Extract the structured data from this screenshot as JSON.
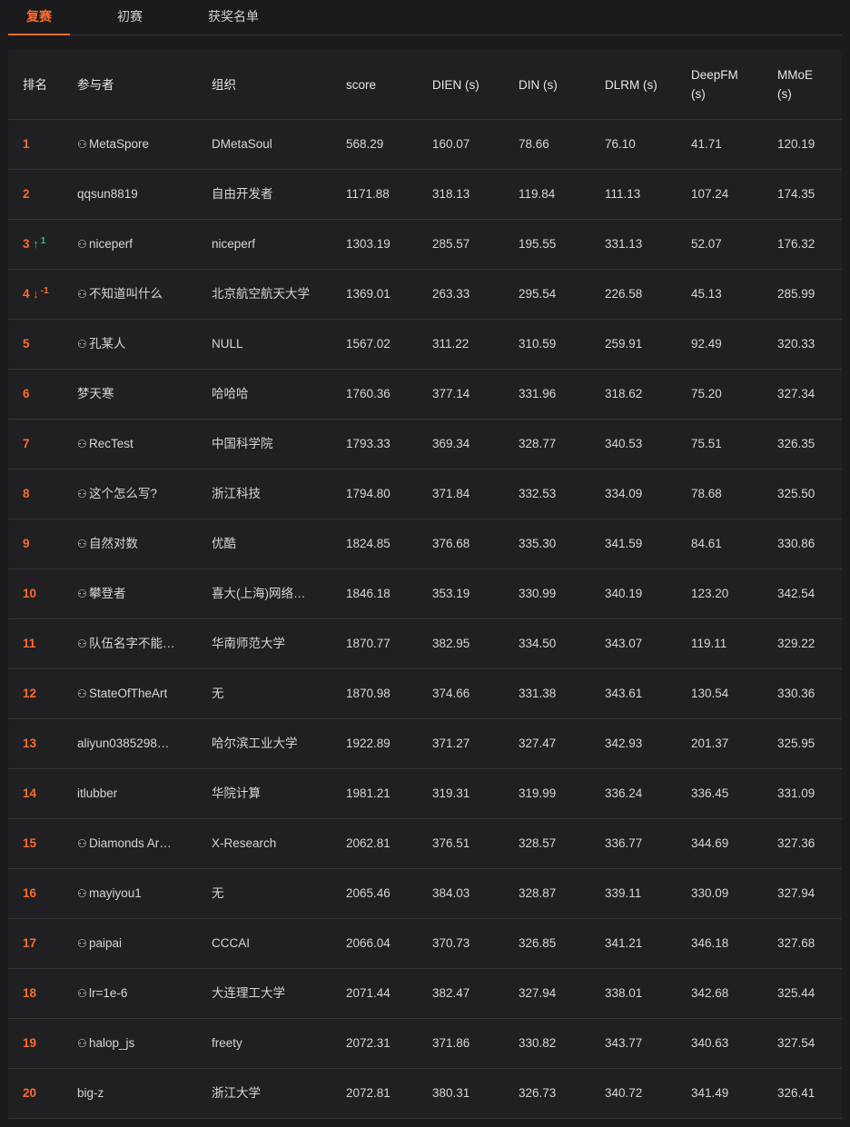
{
  "tabs": [
    "复赛",
    "初赛",
    "获奖名单"
  ],
  "headers": {
    "rank": "排名",
    "participant": "参与者",
    "org": "组织",
    "score": "score",
    "dien": "DIEN (s)",
    "din": "DIN (s)",
    "dlrm": "DLRM (s)",
    "deepfm": [
      "DeepFM",
      "(s)"
    ],
    "mmoe": [
      "MMoE",
      "(s)"
    ]
  },
  "rows": [
    {
      "rank": "1",
      "team": true,
      "name": "MetaSpore",
      "org": "DMetaSoul",
      "score": "568.29",
      "dien": "160.07",
      "din": "78.66",
      "dlrm": "76.10",
      "deepfm": "41.71",
      "mmoe": "120.19"
    },
    {
      "rank": "2",
      "team": false,
      "name": "qqsun8819",
      "org": "自由开发者",
      "score": "1171.88",
      "dien": "318.13",
      "din": "119.84",
      "dlrm": "111.13",
      "deepfm": "107.24",
      "mmoe": "174.35"
    },
    {
      "rank": "3",
      "change": "up",
      "delta": "1",
      "team": true,
      "name": "niceperf",
      "org": "niceperf",
      "score": "1303.19",
      "dien": "285.57",
      "din": "195.55",
      "dlrm": "331.13",
      "deepfm": "52.07",
      "mmoe": "176.32"
    },
    {
      "rank": "4",
      "change": "down",
      "delta": "-1",
      "team": true,
      "name": "不知道叫什么",
      "org": "北京航空航天大学",
      "score": "1369.01",
      "dien": "263.33",
      "din": "295.54",
      "dlrm": "226.58",
      "deepfm": "45.13",
      "mmoe": "285.99"
    },
    {
      "rank": "5",
      "team": true,
      "name": "孔某人",
      "org": "NULL",
      "score": "1567.02",
      "dien": "311.22",
      "din": "310.59",
      "dlrm": "259.91",
      "deepfm": "92.49",
      "mmoe": "320.33"
    },
    {
      "rank": "6",
      "team": false,
      "name": "梦天寒",
      "org": "哈哈哈",
      "score": "1760.36",
      "dien": "377.14",
      "din": "331.96",
      "dlrm": "318.62",
      "deepfm": "75.20",
      "mmoe": "327.34"
    },
    {
      "rank": "7",
      "team": true,
      "name": "RecTest",
      "org": "中国科学院",
      "score": "1793.33",
      "dien": "369.34",
      "din": "328.77",
      "dlrm": "340.53",
      "deepfm": "75.51",
      "mmoe": "326.35"
    },
    {
      "rank": "8",
      "team": true,
      "name": "这个怎么写?",
      "org": "浙江科技",
      "score": "1794.80",
      "dien": "371.84",
      "din": "332.53",
      "dlrm": "334.09",
      "deepfm": "78.68",
      "mmoe": "325.50"
    },
    {
      "rank": "9",
      "team": true,
      "name": "自然对数",
      "org": "优酷",
      "score": "1824.85",
      "dien": "376.68",
      "din": "335.30",
      "dlrm": "341.59",
      "deepfm": "84.61",
      "mmoe": "330.86"
    },
    {
      "rank": "10",
      "team": true,
      "name": "攀登者",
      "org": "喜大(上海)网络…",
      "score": "1846.18",
      "dien": "353.19",
      "din": "330.99",
      "dlrm": "340.19",
      "deepfm": "123.20",
      "mmoe": "342.54"
    },
    {
      "rank": "11",
      "team": true,
      "name": "队伍名字不能…",
      "org": "华南师范大学",
      "score": "1870.77",
      "dien": "382.95",
      "din": "334.50",
      "dlrm": "343.07",
      "deepfm": "119.11",
      "mmoe": "329.22"
    },
    {
      "rank": "12",
      "team": true,
      "name": "StateOfTheArt",
      "org": "无",
      "score": "1870.98",
      "dien": "374.66",
      "din": "331.38",
      "dlrm": "343.61",
      "deepfm": "130.54",
      "mmoe": "330.36"
    },
    {
      "rank": "13",
      "team": false,
      "name": "aliyun0385298…",
      "org": "哈尔滨工业大学",
      "score": "1922.89",
      "dien": "371.27",
      "din": "327.47",
      "dlrm": "342.93",
      "deepfm": "201.37",
      "mmoe": "325.95"
    },
    {
      "rank": "14",
      "team": false,
      "name": "itlubber",
      "org": "华院计算",
      "score": "1981.21",
      "dien": "319.31",
      "din": "319.99",
      "dlrm": "336.24",
      "deepfm": "336.45",
      "mmoe": "331.09"
    },
    {
      "rank": "15",
      "team": true,
      "name": "Diamonds Ar…",
      "org": "X-Research",
      "score": "2062.81",
      "dien": "376.51",
      "din": "328.57",
      "dlrm": "336.77",
      "deepfm": "344.69",
      "mmoe": "327.36"
    },
    {
      "rank": "16",
      "team": true,
      "name": "mayiyou1",
      "org": "无",
      "score": "2065.46",
      "dien": "384.03",
      "din": "328.87",
      "dlrm": "339.11",
      "deepfm": "330.09",
      "mmoe": "327.94"
    },
    {
      "rank": "17",
      "team": true,
      "name": "paipai",
      "org": "CCCAI",
      "score": "2066.04",
      "dien": "370.73",
      "din": "326.85",
      "dlrm": "341.21",
      "deepfm": "346.18",
      "mmoe": "327.68"
    },
    {
      "rank": "18",
      "team": true,
      "name": "lr=1e-6",
      "org": "大连理工大学",
      "score": "2071.44",
      "dien": "382.47",
      "din": "327.94",
      "dlrm": "338.01",
      "deepfm": "342.68",
      "mmoe": "325.44"
    },
    {
      "rank": "19",
      "team": true,
      "name": "halop_js",
      "org": "freety",
      "score": "2072.31",
      "dien": "371.86",
      "din": "330.82",
      "dlrm": "343.77",
      "deepfm": "340.63",
      "mmoe": "327.54"
    },
    {
      "rank": "20",
      "team": false,
      "name": "big-z",
      "org": "浙江大学",
      "score": "2072.81",
      "dien": "380.31",
      "din": "326.73",
      "dlrm": "340.72",
      "deepfm": "341.49",
      "mmoe": "326.41"
    }
  ]
}
